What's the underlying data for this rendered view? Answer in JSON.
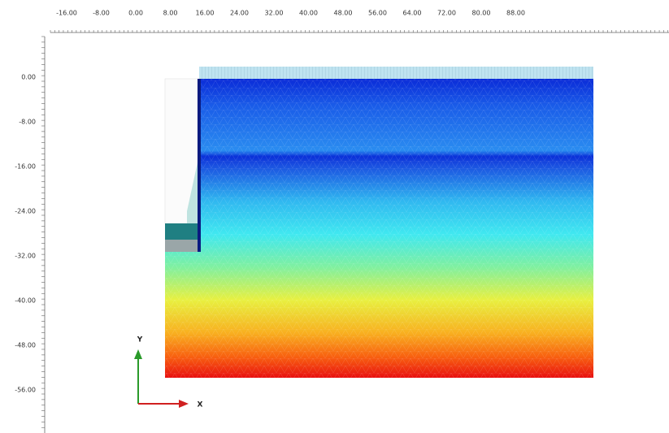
{
  "top_ruler": {
    "labels": [
      "-16.00",
      "-8.00",
      "0.00",
      "8.00",
      "16.00",
      "24.00",
      "32.00",
      "40.00",
      "48.00",
      "56.00",
      "64.00",
      "72.00",
      "80.00",
      "88.00"
    ]
  },
  "left_ruler": {
    "labels": [
      "0.00",
      "-8.00",
      "-16.00",
      "-24.00",
      "-32.00",
      "-40.00",
      "-48.00",
      "-56.00"
    ]
  },
  "axes": {
    "y": "Y",
    "x": "X"
  }
}
